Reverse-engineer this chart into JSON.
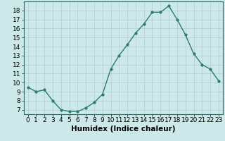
{
  "x": [
    0,
    1,
    2,
    3,
    4,
    5,
    6,
    7,
    8,
    9,
    10,
    11,
    12,
    13,
    14,
    15,
    16,
    17,
    18,
    19,
    20,
    21,
    22,
    23
  ],
  "y": [
    9.5,
    9.0,
    9.2,
    8.0,
    7.0,
    6.8,
    6.8,
    7.2,
    7.8,
    8.7,
    11.5,
    13.0,
    14.2,
    15.5,
    16.5,
    17.8,
    17.8,
    18.5,
    17.0,
    15.3,
    13.2,
    12.0,
    11.5,
    10.2
  ],
  "line_color": "#2d7a6e",
  "marker": "o",
  "markersize": 2,
  "linewidth": 1.0,
  "bg_color": "#cce8e8",
  "grid_color": "#b0cccc",
  "xlabel": "Humidex (Indice chaleur)",
  "xlim": [
    -0.5,
    23.5
  ],
  "ylim": [
    6.5,
    19.0
  ],
  "xticks": [
    0,
    1,
    2,
    3,
    4,
    5,
    6,
    7,
    8,
    9,
    10,
    11,
    12,
    13,
    14,
    15,
    16,
    17,
    18,
    19,
    20,
    21,
    22,
    23
  ],
  "xtick_labels": [
    "0",
    "1",
    "2",
    "3",
    "4",
    "5",
    "6",
    "7",
    "8",
    "9",
    "10",
    "11",
    "12",
    "13",
    "14",
    "15",
    "16",
    "17",
    "18",
    "19",
    "20",
    "21",
    "22",
    "23"
  ],
  "yticks": [
    7,
    8,
    9,
    10,
    11,
    12,
    13,
    14,
    15,
    16,
    17,
    18
  ],
  "tick_fontsize": 6.5,
  "xlabel_fontsize": 7.5
}
